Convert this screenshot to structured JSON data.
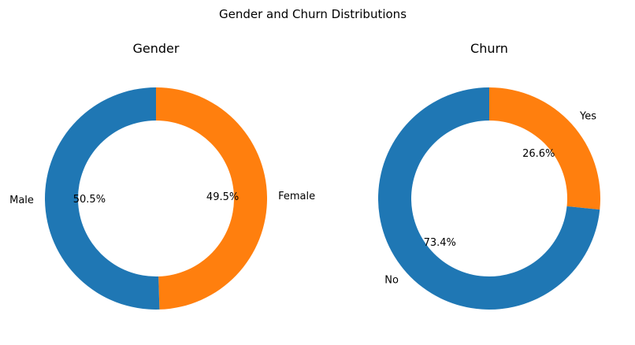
{
  "figure": {
    "title": "Gender and Churn Distributions"
  },
  "colors": {
    "blue": "#1f77b4",
    "orange": "#ff7f0e"
  },
  "chart_data": [
    {
      "type": "pie",
      "style": "donut",
      "title": "Gender",
      "startangle": 90,
      "counterclock": false,
      "slices": [
        {
          "label": "Female",
          "value": 49.5,
          "pct_label": "49.5%",
          "color": "#ff7f0e"
        },
        {
          "label": "Male",
          "value": 50.5,
          "pct_label": "50.5%",
          "color": "#1f77b4"
        }
      ]
    },
    {
      "type": "pie",
      "style": "donut",
      "title": "Churn",
      "startangle": 90,
      "counterclock": false,
      "slices": [
        {
          "label": "Yes",
          "value": 26.6,
          "pct_label": "26.6%",
          "color": "#ff7f0e"
        },
        {
          "label": "No",
          "value": 73.4,
          "pct_label": "73.4%",
          "color": "#1f77b4"
        }
      ]
    }
  ]
}
